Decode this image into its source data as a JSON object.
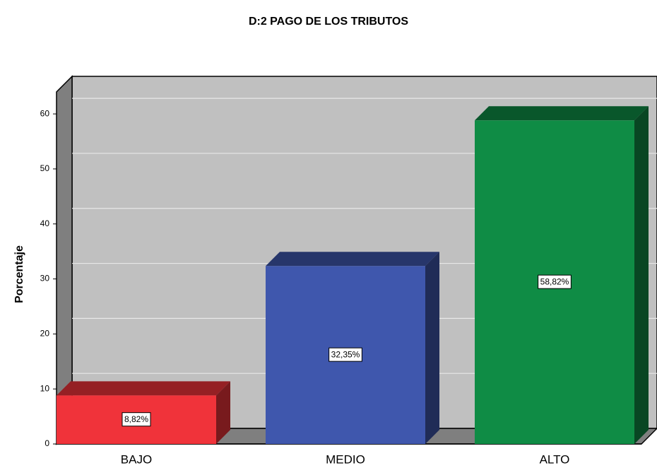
{
  "chart_data": {
    "type": "bar3d",
    "title": "D:2 PAGO DE LOS TRIBUTOS",
    "ylabel": "Porcentaje",
    "categories": [
      "BAJO",
      "MEDIO",
      "ALTO"
    ],
    "values": [
      8.82,
      32.35,
      58.82
    ],
    "value_labels": [
      "8,82%",
      "32,35%",
      "58,82%"
    ],
    "colors": [
      "#f0333a",
      "#3f57ad",
      "#0f8c45"
    ],
    "ylim": [
      0,
      64
    ],
    "yticks": [
      0,
      10,
      20,
      30,
      40,
      50,
      60
    ],
    "grid": true
  }
}
